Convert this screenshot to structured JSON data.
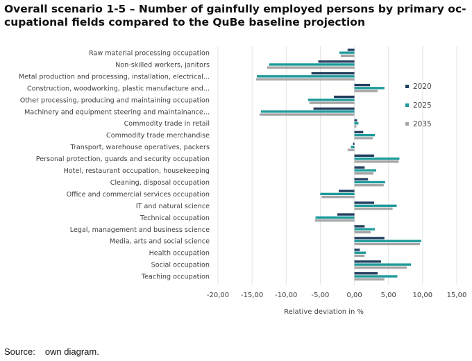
{
  "title": "Overall scenario 1-5 – Number of gainfully employed persons by primary oc-cupational fields compared to the QuBe baseline projection",
  "title_lines": [
    "Overall scenario 1-5 – Number of gainfully employed persons by primary oc-",
    "cupational fields compared to the QuBe baseline projection"
  ],
  "source": {
    "label": "Source:",
    "text": "own diagram."
  },
  "colors": {
    "2020": "#243f60",
    "2025": "#1f9b9b",
    "2035": "#a6a6a6",
    "axis_text": "#404040",
    "gridline": "#e3e3e3"
  },
  "chart_data": {
    "type": "bar",
    "orientation": "horizontal",
    "title": "Overall scenario 1-5 – Number of gainfully employed persons by primary occupational fields compared to the QuBe baseline projection",
    "xlabel": "Relative deviation in %",
    "ylabel": "",
    "xlim": [
      -20,
      15
    ],
    "xticks": [
      -20,
      -15,
      -10,
      -5,
      0,
      5,
      10,
      15
    ],
    "xtick_labels": [
      "-20,00",
      "-15,00",
      "-10,00",
      "-5,00",
      "0,00",
      "5,00",
      "10,00",
      "15,00"
    ],
    "grid": true,
    "legend_position": "right",
    "categories": [
      "Raw material processing occupation",
      "Non-skilled workers, janitors",
      "Metal production and processing, installation, electrical...",
      "Construction, woodworking, plastic manufacture and...",
      "Other processing, producing and maintaining occupation",
      "Machinery and equipment steering and maintainance...",
      "Commodity trade in retail",
      "Commodity trade merchandise",
      "Transport, warehouse operatives, packers",
      "Personal protection, guards and security occupation",
      "Hotel, restaurant occupation, housekeeping",
      "Cleaning, disposal occupation",
      "Office and commercial services occupation",
      "IT and natural science",
      "Technical occupation",
      "Legal, management and business science",
      "Media, arts and social science",
      "Health occupation",
      "Social occupation",
      "Teaching occupation"
    ],
    "series": [
      {
        "name": "2020",
        "values": [
          -1.0,
          -5.3,
          -6.3,
          2.3,
          -3.0,
          -6.0,
          0.4,
          1.3,
          -0.2,
          2.9,
          1.5,
          2.0,
          -2.3,
          2.9,
          -2.5,
          1.5,
          4.4,
          0.8,
          3.9,
          3.4
        ]
      },
      {
        "name": "2025",
        "values": [
          -2.2,
          -12.5,
          -14.3,
          4.4,
          -6.8,
          -13.7,
          0.6,
          3.0,
          -0.5,
          6.6,
          3.2,
          4.5,
          -5.0,
          6.2,
          -5.7,
          3.0,
          9.8,
          1.7,
          8.3,
          6.3
        ]
      },
      {
        "name": "2035",
        "values": [
          -2.0,
          -12.8,
          -14.4,
          3.4,
          -6.6,
          -13.9,
          0.3,
          2.7,
          -1.0,
          6.5,
          2.8,
          4.3,
          -4.8,
          5.6,
          -5.8,
          2.4,
          9.6,
          1.5,
          7.7,
          4.4
        ]
      }
    ]
  }
}
